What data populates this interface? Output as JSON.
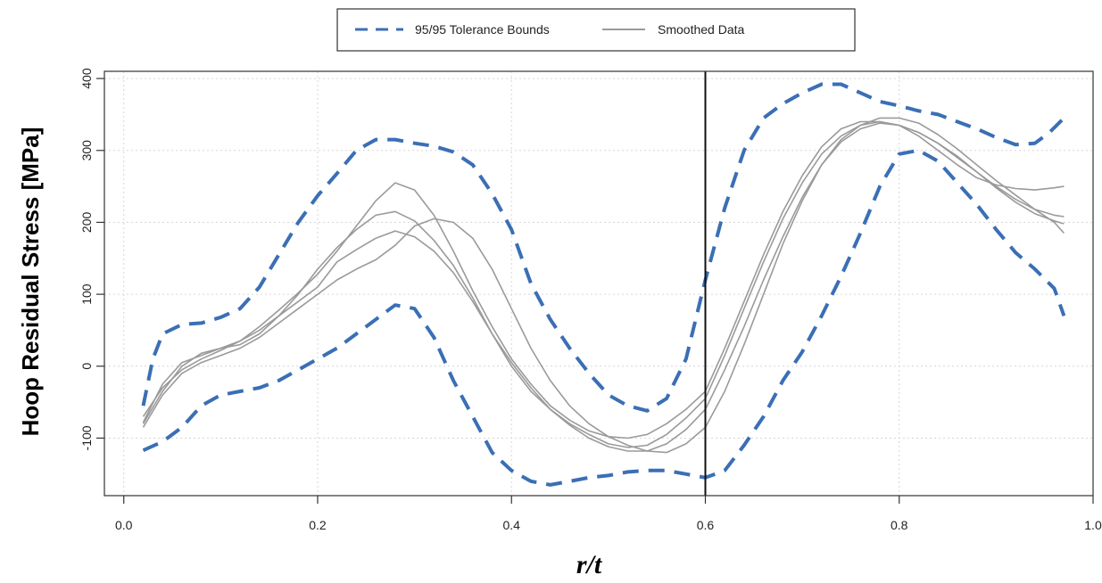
{
  "chart_data": {
    "type": "line",
    "xlabel": "r/t",
    "ylabel": "Hoop  Residual  Stress [MPa]",
    "xlim": [
      0.0,
      1.0
    ],
    "ylim": [
      -180,
      410
    ],
    "x_ticks": [
      0.0,
      0.2,
      0.4,
      0.6,
      0.8,
      1.0
    ],
    "x_tick_labels": [
      "0.0",
      "0.2",
      "0.4",
      "0.6",
      "0.8",
      "1.0"
    ],
    "y_ticks": [
      -100,
      0,
      100,
      200,
      300,
      400
    ],
    "y_tick_labels": [
      "-100",
      "0",
      "100",
      "200",
      "300",
      "400"
    ],
    "grid": true,
    "legend_position": "top",
    "vline": 0.6,
    "colors": {
      "bounds": "#3a6fb5",
      "smoothed": "#9a9a9a",
      "vline": "#111111"
    },
    "legend": [
      {
        "label": "95/95 Tolerance Bounds",
        "style": "dashed",
        "color": "#3a6fb5"
      },
      {
        "label": "Smoothed Data",
        "style": "solid",
        "color": "#9a9a9a"
      }
    ],
    "series": [
      {
        "group": "bounds",
        "x": [
          0.02,
          0.03,
          0.04,
          0.06,
          0.08,
          0.1,
          0.12,
          0.14,
          0.16,
          0.18,
          0.2,
          0.22,
          0.24,
          0.26,
          0.28,
          0.3,
          0.32,
          0.34,
          0.36,
          0.38,
          0.4,
          0.42,
          0.44,
          0.46,
          0.48,
          0.5,
          0.52,
          0.54,
          0.56,
          0.58,
          0.6,
          0.62,
          0.64,
          0.66,
          0.68,
          0.7,
          0.72,
          0.74,
          0.76,
          0.78,
          0.8,
          0.82,
          0.84,
          0.86,
          0.88,
          0.9,
          0.92,
          0.94,
          0.955,
          0.97
        ],
        "y": [
          -55,
          10,
          45,
          58,
          60,
          68,
          80,
          110,
          155,
          200,
          237,
          268,
          300,
          315,
          315,
          310,
          306,
          298,
          280,
          240,
          190,
          115,
          65,
          25,
          -10,
          -40,
          -55,
          -62,
          -45,
          10,
          120,
          220,
          300,
          345,
          365,
          380,
          392,
          392,
          380,
          368,
          362,
          355,
          350,
          340,
          330,
          318,
          308,
          310,
          325,
          345
        ]
      },
      {
        "group": "bounds",
        "x": [
          0.02,
          0.04,
          0.06,
          0.08,
          0.1,
          0.12,
          0.14,
          0.16,
          0.18,
          0.2,
          0.22,
          0.24,
          0.26,
          0.28,
          0.3,
          0.32,
          0.34,
          0.36,
          0.38,
          0.4,
          0.42,
          0.44,
          0.46,
          0.48,
          0.5,
          0.52,
          0.54,
          0.56,
          0.58,
          0.6,
          0.62,
          0.64,
          0.66,
          0.68,
          0.7,
          0.72,
          0.74,
          0.76,
          0.78,
          0.8,
          0.82,
          0.84,
          0.86,
          0.88,
          0.9,
          0.92,
          0.94,
          0.96,
          0.97
        ],
        "y": [
          -117,
          -105,
          -85,
          -55,
          -40,
          -35,
          -30,
          -20,
          -5,
          10,
          25,
          45,
          65,
          85,
          80,
          40,
          -20,
          -70,
          -120,
          -145,
          -160,
          -165,
          -160,
          -155,
          -152,
          -147,
          -145,
          -145,
          -150,
          -155,
          -145,
          -110,
          -70,
          -20,
          20,
          70,
          125,
          185,
          250,
          295,
          300,
          285,
          255,
          225,
          190,
          158,
          135,
          108,
          70
        ]
      },
      {
        "group": "smoothed",
        "x": [
          0.02,
          0.04,
          0.06,
          0.08,
          0.1,
          0.12,
          0.14,
          0.16,
          0.18,
          0.2,
          0.22,
          0.24,
          0.26,
          0.28,
          0.3,
          0.32,
          0.34,
          0.36,
          0.38,
          0.4,
          0.42,
          0.44,
          0.46,
          0.48,
          0.5,
          0.52,
          0.54,
          0.56,
          0.58,
          0.6,
          0.62,
          0.64,
          0.66,
          0.68,
          0.7,
          0.72,
          0.74,
          0.76,
          0.78,
          0.8,
          0.82,
          0.84,
          0.86,
          0.88,
          0.9,
          0.92,
          0.94,
          0.96,
          0.97
        ],
        "y": [
          -70,
          -30,
          -5,
          10,
          22,
          35,
          55,
          78,
          102,
          128,
          160,
          195,
          230,
          255,
          245,
          210,
          160,
          105,
          55,
          10,
          -25,
          -55,
          -75,
          -90,
          -98,
          -100,
          -95,
          -80,
          -60,
          -35,
          25,
          90,
          155,
          215,
          265,
          305,
          330,
          340,
          340,
          335,
          320,
          300,
          280,
          262,
          252,
          247,
          245,
          248,
          250
        ]
      },
      {
        "group": "smoothed",
        "x": [
          0.02,
          0.04,
          0.06,
          0.08,
          0.1,
          0.12,
          0.14,
          0.16,
          0.18,
          0.2,
          0.22,
          0.24,
          0.26,
          0.28,
          0.3,
          0.32,
          0.34,
          0.36,
          0.38,
          0.4,
          0.42,
          0.44,
          0.46,
          0.48,
          0.5,
          0.52,
          0.54,
          0.56,
          0.58,
          0.6,
          0.62,
          0.64,
          0.66,
          0.68,
          0.7,
          0.72,
          0.74,
          0.76,
          0.78,
          0.8,
          0.82,
          0.84,
          0.86,
          0.88,
          0.9,
          0.92,
          0.94,
          0.96,
          0.97
        ],
        "y": [
          -80,
          -35,
          0,
          18,
          25,
          30,
          45,
          70,
          100,
          135,
          165,
          190,
          210,
          215,
          202,
          175,
          140,
          95,
          45,
          0,
          -35,
          -60,
          -80,
          -95,
          -108,
          -113,
          -110,
          -95,
          -72,
          -45,
          15,
          80,
          145,
          205,
          255,
          295,
          320,
          335,
          340,
          335,
          325,
          310,
          292,
          270,
          250,
          232,
          218,
          210,
          208
        ]
      },
      {
        "group": "smoothed",
        "x": [
          0.02,
          0.04,
          0.06,
          0.08,
          0.1,
          0.12,
          0.14,
          0.16,
          0.18,
          0.2,
          0.22,
          0.24,
          0.26,
          0.28,
          0.3,
          0.32,
          0.34,
          0.36,
          0.38,
          0.4,
          0.42,
          0.44,
          0.46,
          0.48,
          0.5,
          0.52,
          0.54,
          0.56,
          0.58,
          0.6,
          0.62,
          0.64,
          0.66,
          0.68,
          0.7,
          0.72,
          0.74,
          0.76,
          0.78,
          0.8,
          0.82,
          0.84,
          0.86,
          0.88,
          0.9,
          0.92,
          0.94,
          0.96,
          0.97
        ],
        "y": [
          -78,
          -25,
          5,
          15,
          25,
          35,
          50,
          70,
          90,
          110,
          145,
          162,
          178,
          188,
          180,
          160,
          130,
          90,
          45,
          5,
          -30,
          -60,
          -82,
          -100,
          -112,
          -118,
          -118,
          -108,
          -88,
          -60,
          -5,
          55,
          120,
          180,
          235,
          280,
          312,
          330,
          338,
          335,
          325,
          310,
          290,
          270,
          248,
          228,
          212,
          202,
          198
        ]
      },
      {
        "group": "smoothed",
        "x": [
          0.02,
          0.04,
          0.06,
          0.08,
          0.1,
          0.12,
          0.14,
          0.16,
          0.18,
          0.2,
          0.22,
          0.24,
          0.26,
          0.28,
          0.3,
          0.32,
          0.34,
          0.36,
          0.38,
          0.4,
          0.42,
          0.44,
          0.46,
          0.48,
          0.5,
          0.52,
          0.54,
          0.56,
          0.58,
          0.6,
          0.62,
          0.64,
          0.66,
          0.68,
          0.7,
          0.72,
          0.74,
          0.76,
          0.78,
          0.8,
          0.82,
          0.84,
          0.86,
          0.88,
          0.9,
          0.92,
          0.94,
          0.96,
          0.97
        ],
        "y": [
          -85,
          -40,
          -10,
          5,
          15,
          25,
          40,
          60,
          80,
          100,
          120,
          135,
          148,
          168,
          195,
          205,
          200,
          178,
          135,
          80,
          25,
          -20,
          -55,
          -80,
          -98,
          -110,
          -118,
          -120,
          -108,
          -85,
          -35,
          30,
          100,
          170,
          230,
          280,
          315,
          335,
          345,
          345,
          338,
          322,
          302,
          280,
          258,
          238,
          218,
          200,
          185
        ]
      }
    ]
  }
}
